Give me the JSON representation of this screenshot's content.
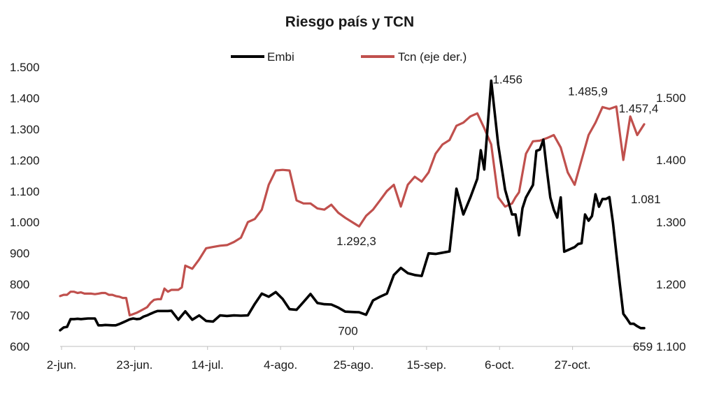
{
  "chart_data": {
    "type": "line",
    "title": "Riesgo país y TCN",
    "legend_position": "top",
    "grid": false,
    "x_ticks": [
      "2-jun.",
      "23-jun.",
      "14-jul.",
      "4-ago.",
      "25-ago.",
      "15-sep.",
      "6-oct.",
      "27-oct."
    ],
    "x_range": [
      0,
      168
    ],
    "y_left": {
      "ylim": [
        600,
        1500
      ],
      "ticks": [
        "600",
        "700",
        "800",
        "900",
        "1.000",
        "1.100",
        "1.200",
        "1.300",
        "1.400",
        "1.500"
      ]
    },
    "y_right": {
      "ylim": [
        1100,
        1550
      ],
      "ticks": [
        "1.100",
        "1.200",
        "1.300",
        "1.400",
        "1.500"
      ]
    },
    "series": [
      {
        "name": "Embi",
        "axis": "left",
        "color": "#000000",
        "x": [
          0,
          1,
          2,
          3,
          4,
          5,
          6,
          7,
          8,
          9,
          10,
          11,
          12,
          13,
          15,
          16,
          17,
          18,
          19,
          20,
          21,
          22,
          23,
          24,
          25,
          26,
          27,
          28,
          29,
          30,
          31,
          32,
          34,
          35,
          36,
          38,
          40,
          42,
          44,
          46,
          48,
          50,
          52,
          54,
          56,
          58,
          60,
          62,
          64,
          66,
          68,
          70,
          72,
          74,
          76,
          78,
          80,
          82,
          84,
          86,
          88,
          90,
          92,
          94,
          96,
          98,
          100,
          102,
          104,
          106,
          108,
          110,
          112,
          114,
          116,
          118,
          120,
          121,
          122,
          124,
          126,
          128,
          130,
          131,
          132,
          133,
          134,
          135,
          136,
          137,
          138,
          139,
          140,
          141,
          142,
          143,
          144,
          145,
          146,
          147,
          148,
          149,
          150,
          151,
          152,
          153,
          154,
          155,
          156,
          157,
          158,
          159,
          160,
          161,
          162,
          163,
          164,
          165,
          166,
          167,
          168
        ],
        "values": [
          652,
          661,
          663,
          688,
          688,
          689,
          688,
          689,
          690,
          690,
          690,
          668,
          668,
          669,
          668,
          668,
          672,
          677,
          682,
          687,
          690,
          688,
          689,
          696,
          700,
          705,
          710,
          714,
          714,
          714,
          714,
          715,
          686,
          700,
          713,
          686,
          700,
          682,
          680,
          700,
          698,
          700,
          699,
          700,
          737,
          770,
          760,
          775,
          753,
          720,
          718,
          743,
          769,
          740,
          736,
          735,
          725,
          712,
          711,
          710,
          702,
          748,
          760,
          770,
          830,
          853,
          836,
          830,
          827,
          900,
          898,
          902,
          906,
          1108,
          1025,
          1080,
          1140,
          1232,
          1170,
          1456,
          1250,
          1105,
          1025,
          1025,
          958,
          1045,
          1080,
          1100,
          1120,
          1230,
          1234,
          1266,
          1170,
          1080,
          1040,
          1015,
          1080,
          905,
          910,
          915,
          920,
          930,
          932,
          1025,
          1005,
          1020,
          1090,
          1050,
          1075,
          1075,
          1081,
          1000,
          900,
          800,
          705,
          690,
          673,
          673,
          665,
          659,
          659
        ]
      },
      {
        "name": "Tcn (eje der.)",
        "axis": "right",
        "color": "#c0504d",
        "x": [
          0,
          1,
          2,
          3,
          4,
          5,
          6,
          7,
          8,
          9,
          10,
          11,
          12,
          13,
          14,
          15,
          16,
          17,
          18,
          19,
          20,
          21,
          22,
          23,
          24,
          25,
          26,
          27,
          28,
          29,
          30,
          31,
          32,
          34,
          35,
          36,
          38,
          40,
          42,
          44,
          46,
          48,
          50,
          52,
          54,
          56,
          58,
          60,
          62,
          64,
          66,
          68,
          70,
          72,
          74,
          76,
          78,
          80,
          82,
          84,
          86,
          88,
          90,
          92,
          94,
          96,
          98,
          100,
          102,
          104,
          106,
          108,
          110,
          112,
          114,
          116,
          118,
          120,
          122,
          124,
          126,
          128,
          130,
          131,
          132,
          134,
          136,
          138,
          140,
          142,
          144,
          146,
          148,
          150,
          152,
          154,
          156,
          158,
          160,
          162,
          164,
          166,
          168
        ],
        "values": [
          1181,
          1183,
          1183,
          1188,
          1188,
          1186,
          1187,
          1185,
          1185,
          1185,
          1184,
          1185,
          1186,
          1186,
          1183,
          1183,
          1181,
          1180,
          1178,
          1178,
          1150,
          1152,
          1154,
          1157,
          1160,
          1163,
          1170,
          1175,
          1176,
          1176,
          1193,
          1188,
          1191,
          1191,
          1195,
          1230,
          1225,
          1240,
          1258,
          1260,
          1262,
          1263,
          1268,
          1275,
          1300,
          1305,
          1320,
          1360,
          1383,
          1384,
          1383,
          1335,
          1330,
          1330,
          1322,
          1320,
          1328,
          1315,
          1307,
          1300,
          1293,
          1310,
          1320,
          1335,
          1350,
          1360,
          1325,
          1360,
          1373,
          1365,
          1380,
          1410,
          1425,
          1432,
          1455,
          1460,
          1470,
          1475,
          1451,
          1425,
          1340,
          1325,
          1330,
          1340,
          1348,
          1410,
          1430,
          1431,
          1435,
          1440,
          1420,
          1380,
          1360,
          1400,
          1440,
          1460,
          1485,
          1482,
          1485.9,
          1400,
          1470,
          1440,
          1457.4
        ]
      }
    ],
    "annotations": [
      {
        "text": "1.456",
        "series": "Embi",
        "x": 120,
        "y": 1456
      },
      {
        "text": "1.485,9",
        "series": "Tcn (eje der.)",
        "x": 153,
        "y": 1485.9
      },
      {
        "text": "1.457,4",
        "series": "Tcn (eje der.)",
        "x": 168,
        "y": 1457.4
      },
      {
        "text": "1.292,3",
        "series": "Tcn (eje der.)",
        "x": 84,
        "y": 1292.3
      },
      {
        "text": "700",
        "series": "Embi",
        "x": 84,
        "y": 700
      },
      {
        "text": "1.081",
        "series": "Embi",
        "x": 158,
        "y": 1081
      },
      {
        "text": "659",
        "series": "Embi",
        "x": 168,
        "y": 659
      }
    ]
  }
}
